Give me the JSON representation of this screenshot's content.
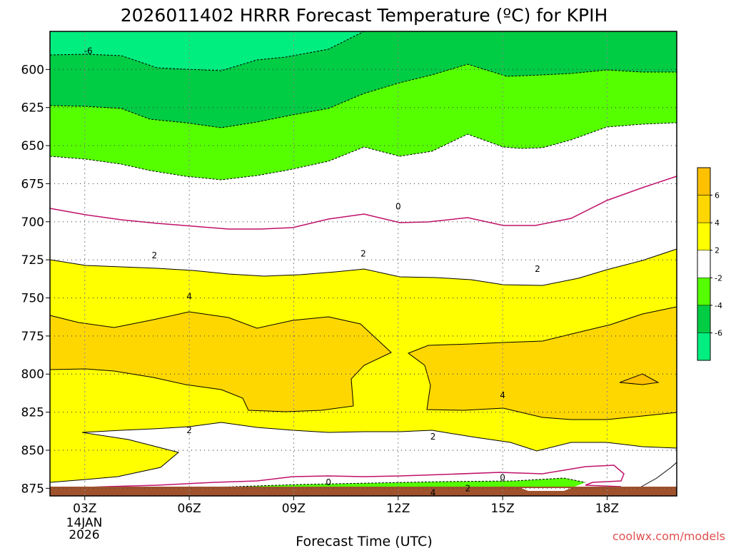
{
  "chart_data": {
    "type": "heatmap",
    "title": "2026011402 HRRR Forecast Temperature (ºC) for KPIH",
    "xlabel": "Forecast Time (UTC)",
    "ylabel": "",
    "credit": "coolwx.com/models",
    "x_ticks": [
      {
        "label": "03Z",
        "hour": 3
      },
      {
        "label": "06Z",
        "hour": 6
      },
      {
        "label": "09Z",
        "hour": 9
      },
      {
        "label": "12Z",
        "hour": 12
      },
      {
        "label": "15Z",
        "hour": 15
      },
      {
        "label": "18Z",
        "hour": 18
      }
    ],
    "x_date": [
      "14JAN",
      "2026"
    ],
    "xlim": [
      2,
      20
    ],
    "y_ticks": [
      600,
      625,
      650,
      675,
      700,
      725,
      750,
      775,
      800,
      825,
      850,
      875
    ],
    "ylim": [
      880,
      575
    ],
    "colorbar": {
      "levels": [
        -8,
        -6,
        -4,
        -2,
        2,
        4,
        6,
        8
      ],
      "labels": [
        "-6",
        "-4",
        "-2",
        "2",
        "4",
        "6"
      ],
      "colors": [
        "#00ee80",
        "#00cc44",
        "#55ff00",
        "#ffffff",
        "#ffff00",
        "#ffd700",
        "#ffc000"
      ]
    },
    "contour_labels": [
      {
        "text": "-6",
        "hour": 3.1,
        "p": 588
      },
      {
        "text": "0",
        "hour": 12,
        "p": 690
      },
      {
        "text": "2",
        "hour": 5,
        "p": 722
      },
      {
        "text": "2",
        "hour": 11,
        "p": 721
      },
      {
        "text": "2",
        "hour": 16,
        "p": 731
      },
      {
        "text": "4",
        "hour": 6,
        "p": 749
      },
      {
        "text": "4",
        "hour": 15,
        "p": 814
      },
      {
        "text": "2",
        "hour": 6,
        "p": 837
      },
      {
        "text": "2",
        "hour": 13,
        "p": 841
      },
      {
        "text": "0",
        "hour": 10,
        "p": 871
      },
      {
        "text": "0",
        "hour": 15,
        "p": 868
      },
      {
        "text": "2",
        "hour": 14,
        "p": 875
      },
      {
        "text": "4",
        "hour": 13,
        "p": 878
      }
    ]
  }
}
